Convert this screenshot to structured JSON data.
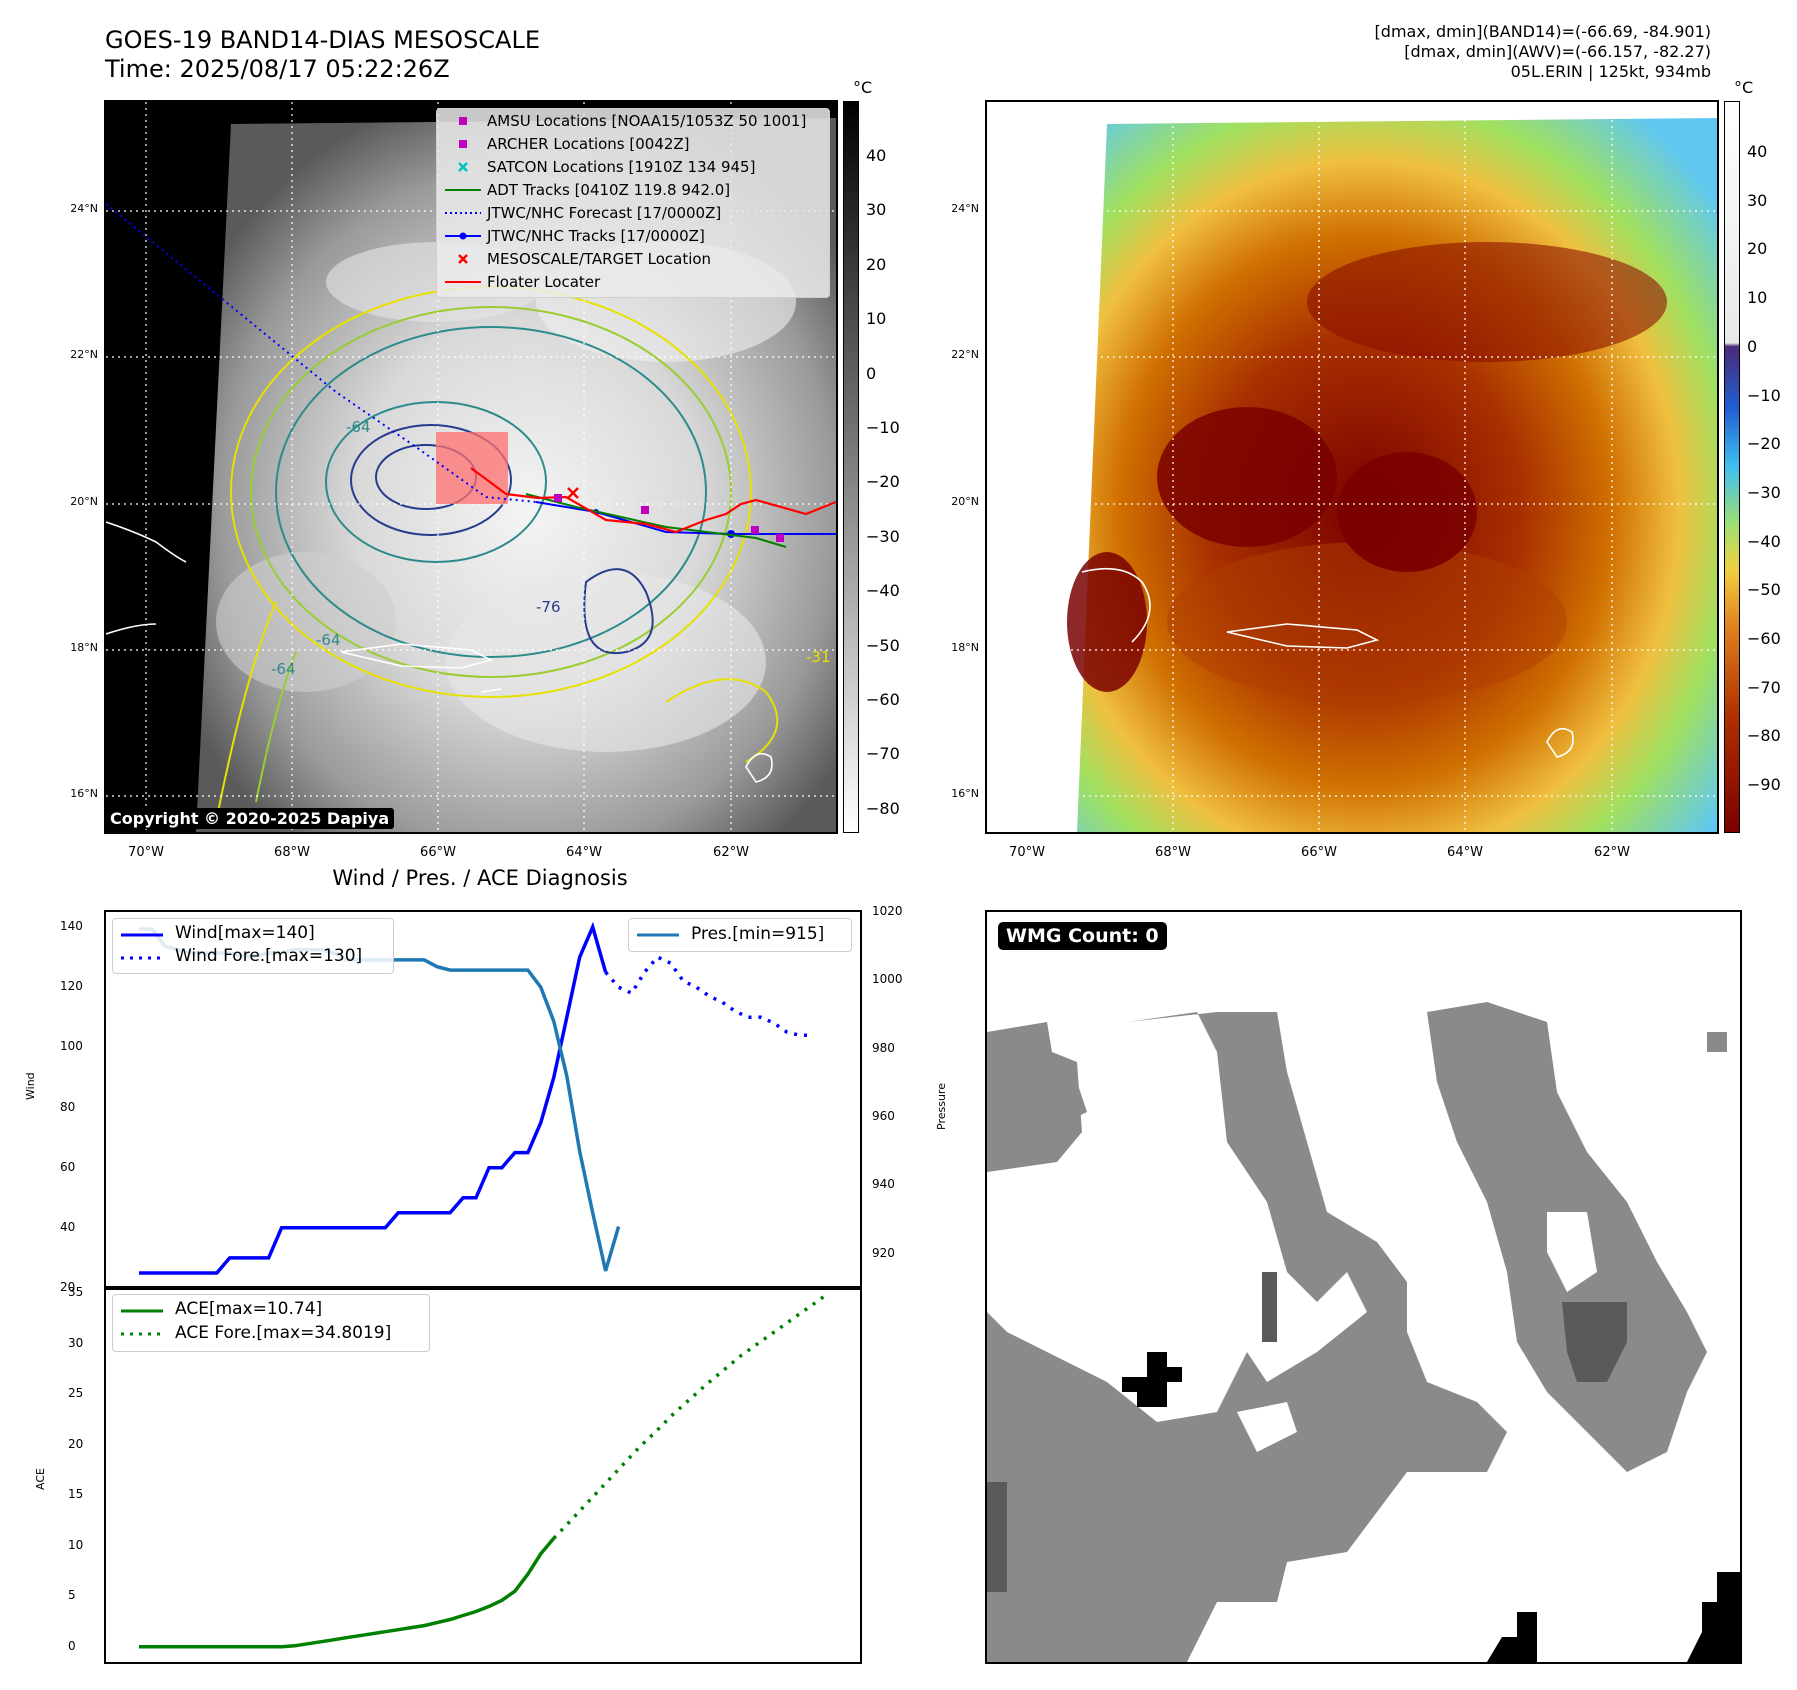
{
  "header": {
    "title_line1": "GOES-19 BAND14-DIAS MESOSCALE",
    "title_line2": "Time: 2025/08/17 05:22:26Z",
    "stats_line1": "[dmax, dmin](BAND14)=(-66.69, -84.901)",
    "stats_line2": "[dmax, dmin](AWV)=(-66.157, -82.27)",
    "stats_line3": "05L.ERIN | 125kt, 934mb"
  },
  "map": {
    "lat_labels": [
      "24°N",
      "22°N",
      "20°N",
      "18°N",
      "16°N"
    ],
    "lon_labels": [
      "70°W",
      "68°W",
      "66°W",
      "64°W",
      "62°W"
    ],
    "copyright": "Copyright © 2020-2025 Dapiya",
    "contour_labels": [
      "-64",
      "-76",
      "-64",
      "-64",
      "-31"
    ],
    "legend": [
      {
        "label": "AMSU Locations [NOAA15/1053Z 50 1001]",
        "color": "#c000c0",
        "symbol": "square"
      },
      {
        "label": "ARCHER Locations [0042Z]",
        "color": "#c000c0",
        "symbol": "square"
      },
      {
        "label": "SATCON Locations [1910Z 134 945]",
        "color": "#00c0c0",
        "symbol": "x"
      },
      {
        "label": "ADT Tracks [0410Z 119.8 942.0]",
        "color": "#008000",
        "symbol": "line"
      },
      {
        "label": "JTWC/NHC Forecast [17/0000Z]",
        "color": "#0000ff",
        "symbol": "dotted"
      },
      {
        "label": "JTWC/NHC Tracks [17/0000Z]",
        "color": "#0000ff",
        "symbol": "line-dot"
      },
      {
        "label": "MESOSCALE/TARGET Location",
        "color": "#ff0000",
        "symbol": "x"
      },
      {
        "label": "Floater Locater",
        "color": "#ff0000",
        "symbol": "line"
      }
    ]
  },
  "colorbar_left": {
    "unit": "°C",
    "ticks": [
      "40",
      "30",
      "20",
      "10",
      "0",
      "−10",
      "−20",
      "−30",
      "−40",
      "−50",
      "−60",
      "−70",
      "−80"
    ]
  },
  "colorbar_right": {
    "unit": "°C",
    "ticks": [
      "40",
      "30",
      "20",
      "10",
      "0",
      "−10",
      "−20",
      "−30",
      "−40",
      "−50",
      "−60",
      "−70",
      "−80",
      "−90"
    ]
  },
  "diagnosis": {
    "title": "Wind / Pres. / ACE Diagnosis",
    "wind_ylabel": "Wind",
    "pres_ylabel": "Pressure",
    "ace_ylabel": "ACE",
    "wind_ticks": [
      "140",
      "120",
      "100",
      "80",
      "60",
      "40",
      "20"
    ],
    "pres_ticks": [
      "1020",
      "1000",
      "980",
      "960",
      "940",
      "920"
    ],
    "ace_ticks": [
      "35",
      "30",
      "25",
      "20",
      "15",
      "10",
      "5",
      "0"
    ],
    "legend_wind": "Wind[max=140]",
    "legend_wind_fore": "Wind Fore.[max=130]",
    "legend_pres": "Pres.[min=915]",
    "legend_ace": "ACE[max=10.74]",
    "legend_ace_fore": "ACE Fore.[max=34.8019]"
  },
  "chart_data": [
    {
      "type": "line",
      "title": "Wind / Pres. / ACE Diagnosis",
      "ylabel": "Wind",
      "ylim": [
        20,
        145
      ],
      "x_index": [
        0,
        1,
        2,
        3,
        4,
        5,
        6,
        7,
        8,
        9,
        10,
        11,
        12,
        13,
        14,
        15,
        16,
        17,
        18,
        19,
        20,
        21,
        22,
        23,
        24,
        25,
        26,
        27,
        28,
        29,
        30,
        31,
        32,
        33,
        34,
        35,
        36,
        37,
        38,
        39,
        40,
        41,
        42,
        43,
        44,
        45,
        46,
        47,
        48,
        49,
        50,
        51,
        52,
        53
      ],
      "series": [
        {
          "name": "Wind[max=140]",
          "color": "#0000ff",
          "style": "solid",
          "values": [
            25,
            25,
            25,
            25,
            25,
            25,
            25,
            30,
            30,
            30,
            30,
            40,
            40,
            40,
            40,
            40,
            40,
            40,
            40,
            40,
            45,
            45,
            45,
            45,
            45,
            50,
            50,
            60,
            60,
            65,
            65,
            75,
            90,
            110,
            130,
            140,
            125
          ]
        },
        {
          "name": "Wind Fore.[max=130]",
          "color": "#0000ff",
          "style": "dotted",
          "x_start": 36,
          "values": [
            125,
            120,
            118,
            125,
            130,
            128,
            122,
            120,
            117,
            115,
            112,
            110,
            110,
            108,
            105,
            104,
            104
          ]
        }
      ]
    },
    {
      "type": "line",
      "ylabel": "Pressure",
      "ylim": [
        910,
        1020
      ],
      "series": [
        {
          "name": "Pres.[min=915]",
          "color": "#1f77b4",
          "style": "solid",
          "values": [
            1015,
            1015,
            1010,
            1009,
            1008,
            1008,
            1008,
            1008,
            1007,
            1007,
            1008,
            1008,
            1009,
            1009,
            1009,
            1008,
            1006,
            1006,
            1006,
            1006,
            1006,
            1006,
            1006,
            1004,
            1003,
            1003,
            1003,
            1003,
            1003,
            1003,
            1003,
            998,
            988,
            972,
            950,
            932,
            915,
            928
          ]
        }
      ]
    },
    {
      "type": "line",
      "ylabel": "ACE",
      "ylim": [
        -1.5,
        35.5
      ],
      "series": [
        {
          "name": "ACE[max=10.74]",
          "color": "#008000",
          "style": "solid",
          "values": [
            0,
            0,
            0,
            0,
            0,
            0,
            0,
            0,
            0,
            0,
            0,
            0,
            0.1,
            0.3,
            0.5,
            0.7,
            0.9,
            1.1,
            1.3,
            1.5,
            1.7,
            1.9,
            2.1,
            2.4,
            2.7,
            3.1,
            3.5,
            4.0,
            4.6,
            5.5,
            7.2,
            9.2,
            10.74
          ]
        },
        {
          "name": "ACE Fore.[max=34.8019]",
          "color": "#008000",
          "style": "dotted",
          "x_start": 32,
          "values": [
            10.74,
            12.5,
            14.3,
            16.1,
            17.9,
            19.7,
            21.3,
            23.0,
            24.5,
            26.0,
            27.4,
            28.8,
            30.0,
            31.2,
            32.4,
            33.6,
            34.8019
          ]
        }
      ]
    }
  ],
  "wmg": {
    "label": "WMG Count: 0"
  }
}
